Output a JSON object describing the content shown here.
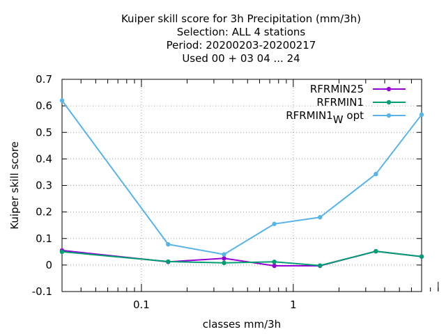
{
  "chart_data": {
    "type": "line",
    "title_lines": [
      "Kuiper skill score  for 3h Precipitation (mm/3h)",
      "Selection: ALL      4 stations",
      "Period: 20200203-20200217",
      "Used  00 + 03 04 ... 24"
    ],
    "xlabel": "classes mm/3h",
    "ylabel": "Kuiper skill score",
    "x_scale": "log",
    "xlim": [
      0.03,
      7.0
    ],
    "ylim": [
      -0.1,
      0.7
    ],
    "x_tick_labels": [
      {
        "value": 0.1,
        "label": "0.1"
      },
      {
        "value": 1,
        "label": "1"
      }
    ],
    "y_ticks": [
      -0.1,
      0,
      0.1,
      0.2,
      0.3,
      0.4,
      0.5,
      0.6,
      0.7
    ],
    "y_tick_labels": [
      "-0.1",
      "0",
      "0.1",
      "0.2",
      "0.3",
      "0.4",
      "0.5",
      "0.6",
      "0.7"
    ],
    "grid": true,
    "legend_position": "top-right",
    "x": [
      0.03,
      0.15,
      0.35,
      0.75,
      1.5,
      3.5,
      7.0
    ],
    "series": [
      {
        "name": "RFRMIN25",
        "color": "#9400d3",
        "values": [
          0.055,
          0.012,
          0.025,
          -0.003,
          -0.003,
          0.052,
          0.032
        ]
      },
      {
        "name": "RFRMIN1",
        "color": "#009e73",
        "values": [
          0.05,
          0.013,
          0.008,
          0.012,
          -0.002,
          0.052,
          0.032
        ]
      },
      {
        "name": "RFRMIN1",
        "name_subscript": "W",
        "name_suffix": " opt",
        "color": "#56b4e9",
        "values": [
          0.62,
          0.078,
          0.04,
          0.155,
          0.18,
          0.343,
          0.567
        ]
      }
    ]
  }
}
